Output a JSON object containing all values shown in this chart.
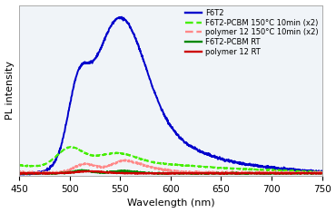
{
  "title": "",
  "xlabel": "Wavelength (nm)",
  "ylabel": "PL intensity",
  "xlim": [
    450,
    750
  ],
  "background_color": "#f0f4f8",
  "legend_entries": [
    "F6T2",
    "F6T2-PCBM 150°C 10min (x2)",
    "polymer 12 150°C 10min (x2)",
    "F6T2-PCBM RT",
    "polymer 12 RT"
  ],
  "line_colors": [
    "#0000cc",
    "#44ee00",
    "#ff8888",
    "#008800",
    "#cc0000"
  ],
  "line_styles": [
    "-",
    "--",
    "--",
    "-",
    "-"
  ],
  "line_widths": [
    1.4,
    1.4,
    1.4,
    1.4,
    1.4
  ]
}
